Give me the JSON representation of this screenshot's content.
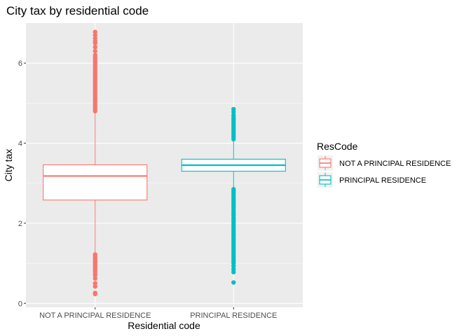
{
  "chart_data": {
    "type": "boxplot",
    "title": "City tax by residential code",
    "xlabel": "Residential code",
    "ylabel": "City tax",
    "ylim": [
      -0.1,
      7.0
    ],
    "yticks": [
      0,
      2,
      4,
      6
    ],
    "grid": true,
    "legend": {
      "title": "ResCode",
      "placement": "right"
    },
    "categories": [
      "NOT A PRINCIPAL RESIDENCE",
      "PRINCIPAL RESIDENCE"
    ],
    "series": [
      {
        "name": "NOT A PRINCIPAL RESIDENCE",
        "color": "#F8766D",
        "box": {
          "min": 1.24,
          "q1": 2.58,
          "median": 3.18,
          "q3": 3.46,
          "max": 4.77
        },
        "outliers": [
          4.8,
          4.85,
          4.9,
          4.95,
          5.0,
          5.05,
          5.1,
          5.15,
          5.2,
          5.25,
          5.3,
          5.35,
          5.4,
          5.45,
          5.5,
          5.55,
          5.6,
          5.65,
          5.7,
          5.75,
          5.8,
          5.85,
          5.9,
          5.95,
          6.0,
          6.05,
          6.1,
          6.15,
          6.2,
          6.3,
          6.4,
          6.5,
          6.55,
          6.62,
          6.7,
          6.78,
          1.22,
          1.18,
          1.14,
          1.1,
          1.06,
          1.02,
          0.98,
          0.94,
          0.9,
          0.85,
          0.8,
          0.75,
          0.7,
          0.62,
          0.5,
          0.42,
          0.26,
          0.23
        ]
      },
      {
        "name": "PRINCIPAL RESIDENCE",
        "color": "#00BFC4",
        "box": {
          "min": 2.87,
          "q1": 3.3,
          "median": 3.45,
          "q3": 3.6,
          "max": 4.07
        },
        "outliers": [
          4.1,
          4.15,
          4.2,
          4.25,
          4.3,
          4.35,
          4.4,
          4.45,
          4.5,
          4.55,
          4.6,
          4.65,
          4.7,
          4.78,
          4.85,
          2.85,
          2.8,
          2.75,
          2.7,
          2.65,
          2.6,
          2.55,
          2.5,
          2.45,
          2.4,
          2.35,
          2.3,
          2.25,
          2.2,
          2.15,
          2.1,
          2.05,
          2.0,
          1.95,
          1.9,
          1.85,
          1.8,
          1.75,
          1.7,
          1.65,
          1.6,
          1.55,
          1.5,
          1.45,
          1.4,
          1.35,
          1.3,
          1.25,
          1.2,
          1.15,
          1.1,
          1.05,
          1.0,
          0.93,
          0.85,
          0.78,
          0.52
        ]
      }
    ]
  }
}
